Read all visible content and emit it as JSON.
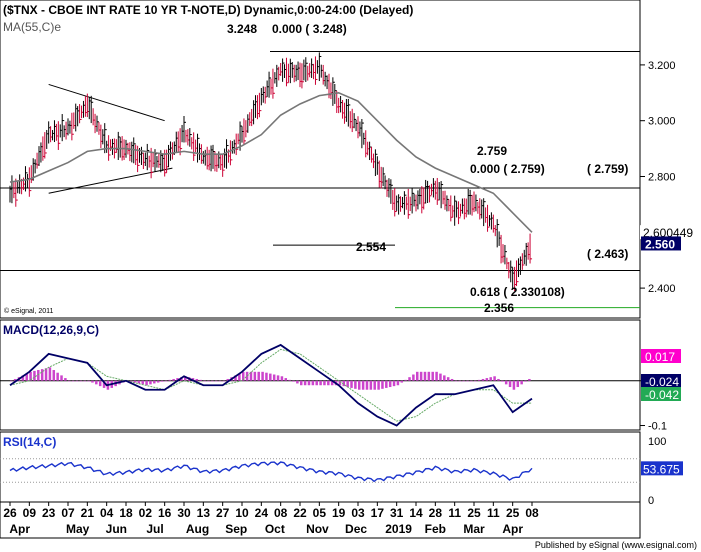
{
  "header": {
    "title": "($TNX - CBOE INT RATE 10 YR T-NOTE,D) Dynamic,0:00-24:00 (Delayed)",
    "ma_label": "MA(55,C)e",
    "copyright": "© eSignal, 2011",
    "publisher": "Published by eSignal (www.esignal.com)"
  },
  "colors": {
    "price_up": "#000000",
    "price_down": "#cc0033",
    "ma": "#777777",
    "macd_line": "#000066",
    "macd_signal": "#66aa66",
    "macd_hist": "#cc44cc",
    "rsi": "#1a33cc",
    "badge_navy": "#000066",
    "badge_magenta": "#ff00cc",
    "badge_green": "#22aa55",
    "badge_blue": "#1a33cc",
    "fib_green": "#22aa22"
  },
  "chart_data": [
    {
      "type": "line",
      "name": "price",
      "title": "($TNX - CBOE INT RATE 10 YR T-NOTE,D) Dynamic,0:00-24:00 (Delayed)",
      "ylim": [
        2.3,
        3.3
      ],
      "y_ticks": [
        "3.200",
        "3.000",
        "2.800",
        "2.600",
        "2.400"
      ],
      "y_tick_values": [
        3.2,
        3.0,
        2.8,
        2.6,
        2.4
      ],
      "x_tick_days": [
        "26",
        "09",
        "23",
        "07",
        "21",
        "04",
        "18",
        "02",
        "16",
        "30",
        "13",
        "27",
        "10",
        "24",
        "08",
        "22",
        "05",
        "19",
        "03",
        "17",
        "31",
        "14",
        "28",
        "11",
        "25",
        "11",
        "25",
        "08"
      ],
      "x_months": [
        "Apr",
        "May",
        "Jun",
        "Jul",
        "Aug",
        "Sep",
        "Oct",
        "Nov",
        "Dec",
        "2019",
        "Feb",
        "Mar",
        "Apr"
      ],
      "x": [
        "2018-03-26",
        "2018-04-09",
        "2018-04-23",
        "2018-05-07",
        "2018-05-21",
        "2018-06-04",
        "2018-06-18",
        "2018-07-02",
        "2018-07-16",
        "2018-07-30",
        "2018-08-13",
        "2018-08-27",
        "2018-09-10",
        "2018-09-24",
        "2018-10-08",
        "2018-10-22",
        "2018-11-05",
        "2018-11-19",
        "2018-12-03",
        "2018-12-17",
        "2018-12-31",
        "2019-01-14",
        "2019-01-28",
        "2019-02-11",
        "2019-02-25",
        "2019-03-11",
        "2019-03-25",
        "2019-04-08"
      ],
      "close": [
        2.74,
        2.79,
        2.95,
        2.97,
        3.06,
        2.91,
        2.9,
        2.86,
        2.85,
        2.96,
        2.87,
        2.85,
        2.95,
        3.08,
        3.18,
        3.17,
        3.19,
        3.06,
        2.98,
        2.83,
        2.7,
        2.71,
        2.76,
        2.67,
        2.71,
        2.63,
        2.43,
        2.56
      ],
      "ma55": [
        2.78,
        2.79,
        2.82,
        2.85,
        2.89,
        2.9,
        2.9,
        2.89,
        2.88,
        2.89,
        2.88,
        2.88,
        2.91,
        2.95,
        3.02,
        3.06,
        3.09,
        3.1,
        3.07,
        3.0,
        2.93,
        2.87,
        2.83,
        2.8,
        2.77,
        2.74,
        2.67,
        2.6
      ],
      "levels": [
        {
          "value": 3.248,
          "label": "3.248"
        },
        {
          "value": 2.759,
          "label": "( 2.759)"
        },
        {
          "value": 2.463,
          "label": "( 2.463)"
        },
        {
          "value": 2.330108,
          "label": "0.618 ( 2.330108)"
        },
        {
          "value": 2.554,
          "label": "2.554"
        }
      ],
      "annotations": [
        "3.248",
        "0.000 ( 3.248)",
        "2.759",
        "0.000 ( 2.759)",
        "2.554",
        "2.356"
      ],
      "last_ma": "2.600449",
      "last_close": "2.560"
    },
    {
      "type": "line",
      "name": "macd",
      "title": "MACD(12,26,9,C)",
      "ylim": [
        -0.11,
        0.1
      ],
      "y_ticks": [
        "0",
        "-0.1"
      ],
      "y_tick_values": [
        0.0,
        -0.1
      ],
      "macd": [
        -0.01,
        0.02,
        0.06,
        0.05,
        0.04,
        -0.01,
        0.0,
        -0.02,
        -0.02,
        0.01,
        -0.01,
        -0.01,
        0.02,
        0.06,
        0.08,
        0.05,
        0.02,
        -0.01,
        -0.05,
        -0.08,
        -0.1,
        -0.06,
        -0.03,
        -0.03,
        -0.02,
        -0.01,
        -0.07,
        -0.04
      ],
      "signal": [
        -0.01,
        0.0,
        0.03,
        0.05,
        0.04,
        0.01,
        0.0,
        -0.01,
        -0.02,
        0.0,
        -0.01,
        -0.01,
        0.0,
        0.04,
        0.07,
        0.06,
        0.03,
        0.0,
        -0.03,
        -0.06,
        -0.09,
        -0.08,
        -0.05,
        -0.03,
        -0.02,
        -0.02,
        -0.05,
        -0.05
      ],
      "hist": [
        0.0,
        0.02,
        0.03,
        0.0,
        0.0,
        -0.02,
        0.0,
        -0.01,
        0.0,
        0.01,
        0.0,
        0.0,
        0.02,
        0.02,
        0.01,
        -0.01,
        -0.01,
        -0.01,
        -0.02,
        -0.02,
        -0.01,
        0.02,
        0.02,
        0.0,
        0.0,
        0.01,
        -0.02,
        0.01
      ],
      "badges": [
        "0.017",
        "-0.024",
        "-0.042"
      ]
    },
    {
      "type": "line",
      "name": "rsi",
      "title": "RSI(14,C)",
      "ylim": [
        0,
        100
      ],
      "y_ticks": [
        "100",
        "0"
      ],
      "y_tick_values": [
        100,
        0
      ],
      "rsi": [
        50,
        55,
        58,
        62,
        55,
        44,
        47,
        52,
        50,
        58,
        48,
        50,
        58,
        62,
        63,
        55,
        48,
        45,
        37,
        34,
        40,
        47,
        55,
        48,
        51,
        45,
        35,
        53.675
      ],
      "badge": "53.675"
    }
  ]
}
